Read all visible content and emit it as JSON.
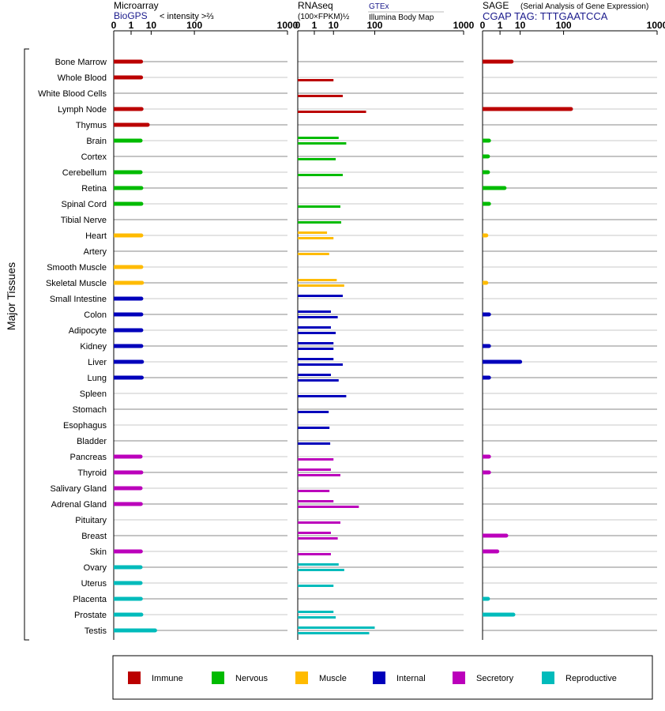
{
  "chart_data": {
    "type": "bar",
    "title": "",
    "ylabel": "Major Tissues",
    "categories": [
      "Bone Marrow",
      "Whole Blood",
      "White Blood Cells",
      "Lymph Node",
      "Thymus",
      "Brain",
      "Cortex",
      "Cerebellum",
      "Retina",
      "Spinal Cord",
      "Tibial Nerve",
      "Heart",
      "Artery",
      "Smooth Muscle",
      "Skeletal Muscle",
      "Small Intestine",
      "Colon",
      "Adipocyte",
      "Kidney",
      "Liver",
      "Lung",
      "Spleen",
      "Stomach",
      "Esophagus",
      "Bladder",
      "Pancreas",
      "Thyroid",
      "Salivary Gland",
      "Adrenal Gland",
      "Pituitary",
      "Breast",
      "Skin",
      "Ovary",
      "Uterus",
      "Placenta",
      "Prostate",
      "Testis"
    ],
    "category_groups": [
      "immune",
      "immune",
      "immune",
      "immune",
      "immune",
      "nervous",
      "nervous",
      "nervous",
      "nervous",
      "nervous",
      "nervous",
      "muscle",
      "muscle",
      "muscle",
      "muscle",
      "internal",
      "internal",
      "internal",
      "internal",
      "internal",
      "internal",
      "internal",
      "internal",
      "internal",
      "internal",
      "secretory",
      "secretory",
      "secretory",
      "secretory",
      "secretory",
      "secretory",
      "secretory",
      "reproductive",
      "reproductive",
      "reproductive",
      "reproductive",
      "reproductive"
    ],
    "ticks": [
      0,
      1,
      10,
      100,
      1000
    ],
    "tick_labels": [
      "0",
      "1",
      "10",
      "100",
      "1000"
    ],
    "xlim": [
      0,
      1000
    ],
    "panels": [
      {
        "key": "microarray",
        "title": "Microarray",
        "subtitle": "BioGPS",
        "axis_note": "< intensity >⅔",
        "values": [
          3.9,
          3.9,
          null,
          4.1,
          7.5,
          3.7,
          null,
          3.7,
          4.0,
          4.0,
          null,
          4.0,
          null,
          4.0,
          4.3,
          4.0,
          4.0,
          4.0,
          4.0,
          4.3,
          4.2,
          null,
          null,
          null,
          null,
          3.7,
          4.0,
          3.7,
          3.8,
          null,
          null,
          3.8,
          3.7,
          3.7,
          3.8,
          4.0,
          13.5
        ]
      },
      {
        "key": "rnaseq",
        "title": "RNAseq",
        "subtitle": "(100×FPKM)½",
        "legend_top": "GTEx",
        "legend_bottom": "Illumina Body Map",
        "gtex": [
          null,
          null,
          null,
          null,
          null,
          15,
          null,
          null,
          null,
          null,
          null,
          5.5,
          null,
          null,
          13,
          20,
          8,
          8,
          10,
          10,
          8,
          null,
          null,
          null,
          null,
          null,
          8,
          null,
          10,
          null,
          8,
          null,
          15,
          null,
          null,
          10,
          100
        ],
        "body_map": [
          null,
          10,
          20,
          70,
          null,
          25,
          12,
          20,
          null,
          17,
          18,
          10,
          6.8,
          null,
          22,
          null,
          14,
          12,
          10,
          20,
          15,
          25,
          6.5,
          7,
          7.5,
          10,
          17,
          7,
          50,
          17,
          14,
          8,
          22,
          10,
          null,
          12,
          80
        ]
      },
      {
        "key": "sage",
        "title": "SAGE",
        "title_note": "(Serial Analysis of Gene Expression)",
        "subtitle": "CGAP TAG: TTTGAATCCA",
        "values": [
          4.6,
          null,
          null,
          130,
          null,
          0.05,
          0.03,
          0.03,
          2.0,
          0.05,
          null,
          0.01,
          null,
          null,
          0.01,
          null,
          0.05,
          null,
          0.05,
          10,
          0.05,
          null,
          null,
          null,
          null,
          0.05,
          0.05,
          null,
          null,
          null,
          2.5,
          0.6,
          null,
          null,
          0.03,
          5.5,
          null
        ]
      }
    ],
    "legend": [
      {
        "key": "immune",
        "label": "Immune",
        "color": "#bb0000"
      },
      {
        "key": "nervous",
        "label": "Nervous",
        "color": "#00bb00"
      },
      {
        "key": "muscle",
        "label": "Muscle",
        "color": "#ffbb00"
      },
      {
        "key": "internal",
        "label": "Internal",
        "color": "#0000bb"
      },
      {
        "key": "secretory",
        "label": "Secretory",
        "color": "#bb00bb"
      },
      {
        "key": "reproductive",
        "label": "Reproductive",
        "color": "#00bbbb"
      }
    ],
    "legend_placement": "bottom",
    "grid": true
  }
}
